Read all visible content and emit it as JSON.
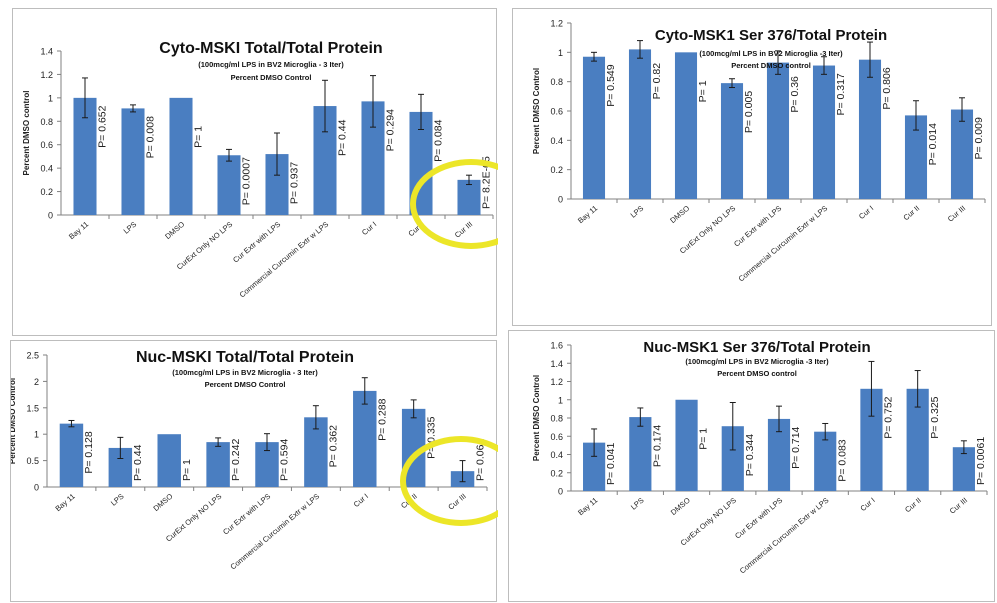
{
  "colors": {
    "bar": "#4a7ec1",
    "highlight": "#ece628",
    "axis": "#808080",
    "text": "#222222"
  },
  "chart_data": [
    {
      "type": "bar",
      "title": "Cyto-MSKI Total/Total Protein",
      "subtitle": "(100mcg/ml LPS in BV2 Microglia - 3 Iter)",
      "subtitle2": "Percent DMSO Control",
      "ylabel": "Percent DMSO control",
      "ylim": [
        0,
        1.4
      ],
      "yticks": [
        "0",
        "0.2",
        "0.4",
        "0.6",
        "0.8",
        "1",
        "1.2",
        "1.4"
      ],
      "categories": [
        "Bay 11",
        "LPS",
        "DMSO",
        "CurExt Only NO LPS",
        "Cur Extr with LPS",
        "Commercial Curcumin Extr w LPS",
        "Cur I",
        "Cur II",
        "Cur III"
      ],
      "values": [
        1.0,
        0.91,
        1.0,
        0.51,
        0.52,
        0.93,
        0.97,
        0.88,
        0.3
      ],
      "errors": [
        0.17,
        0.03,
        0.0,
        0.05,
        0.18,
        0.22,
        0.22,
        0.15,
        0.04
      ],
      "pvalues": [
        "P= 0.652",
        "P= 0.008",
        "P= 1",
        "P= 0.0007",
        "P= 0.937",
        "P= 0.44",
        "P= 0.294",
        "P= 0.084",
        "P= 8.2E-05"
      ],
      "highlight_category": "Cur III"
    },
    {
      "type": "bar",
      "title": "Cyto-MSK1 Ser 376/Total Protein",
      "subtitle": "(100mcg/ml LPS in BV2 Microglia -3 Iter)",
      "subtitle2": "Percent DMSO control",
      "ylabel": "Percent DMSO Control",
      "ylim": [
        0,
        1.2
      ],
      "yticks": [
        "0",
        "0.2",
        "0.4",
        "0.6",
        "0.8",
        "1",
        "1.2"
      ],
      "categories": [
        "Bay 11",
        "LPS",
        "DMSO",
        "CurExt Only NO LPS",
        "Cur Extr with LPS",
        "Commercial Curcumin Extr w LPS",
        "Cur I",
        "Cur II",
        "Cur III"
      ],
      "values": [
        0.97,
        1.02,
        1.0,
        0.79,
        0.93,
        0.91,
        0.95,
        0.57,
        0.61
      ],
      "errors": [
        0.03,
        0.06,
        0.0,
        0.03,
        0.08,
        0.06,
        0.12,
        0.1,
        0.08
      ],
      "pvalues": [
        "P= 0.549",
        "P= 0.82",
        "P= 1",
        "P= 0.005",
        "P= 0.36",
        "P= 0.317",
        "P= 0.806",
        "P= 0.014",
        "P= 0.009"
      ]
    },
    {
      "type": "bar",
      "title": "Nuc-MSKI Total/Total Protein",
      "subtitle": "(100mcg/ml LPS in BV2 Microglia - 3 Iter)",
      "subtitle2": "Percent DMSO Control",
      "ylabel": "Percent DMSO Control",
      "ylim": [
        0,
        2.5
      ],
      "yticks": [
        "0",
        "0.5",
        "1",
        "1.5",
        "2",
        "2.5"
      ],
      "categories": [
        "Bay 11",
        "LPS",
        "DMSO",
        "CurExt Only NO LPS",
        "Cur Extr with LPS",
        "Commercial Curcumin Extr w LPS",
        "Cur I",
        "Cur II",
        "Cur III"
      ],
      "values": [
        1.2,
        0.74,
        1.0,
        0.85,
        0.85,
        1.32,
        1.82,
        1.48,
        0.3
      ],
      "errors": [
        0.06,
        0.2,
        0.0,
        0.08,
        0.16,
        0.22,
        0.25,
        0.17,
        0.2
      ],
      "pvalues": [
        "P= 0.128",
        "P= 0.44",
        "P= 1",
        "P= 0.242",
        "P= 0.594",
        "P= 0.362",
        "P= 0.288",
        "P= 0.335",
        "P= 0.061"
      ],
      "highlight_category": "Cur III"
    },
    {
      "type": "bar",
      "title": "Nuc-MSK1 Ser 376/Total Protein",
      "subtitle": "(100mcg/ml LPS in BV2 Microglia -3 Iter)",
      "subtitle2": "Percent DMSO control",
      "ylabel": "Percent DMSO Control",
      "ylim": [
        0,
        1.6
      ],
      "yticks": [
        "0",
        "0.2",
        "0.4",
        "0.6",
        "0.8",
        "1",
        "1.2",
        "1.4",
        "1.6"
      ],
      "categories": [
        "Bay 11",
        "LPS",
        "DMSO",
        "CurExt Only NO LPS",
        "Cur Extr with LPS",
        "Commercial Curcumin Extr w LPS",
        "Cur I",
        "Cur II",
        "Cur III"
      ],
      "values": [
        0.53,
        0.81,
        1.0,
        0.71,
        0.79,
        0.65,
        1.12,
        1.12,
        0.48
      ],
      "errors": [
        0.15,
        0.1,
        0.0,
        0.26,
        0.14,
        0.09,
        0.3,
        0.2,
        0.07
      ],
      "pvalues": [
        "P= 0.041",
        "P= 0.174",
        "P= 1",
        "P= 0.344",
        "P= 0.714",
        "P= 0.083",
        "P= 0.752",
        "P= 0.325",
        "P= 0.0061"
      ]
    }
  ]
}
